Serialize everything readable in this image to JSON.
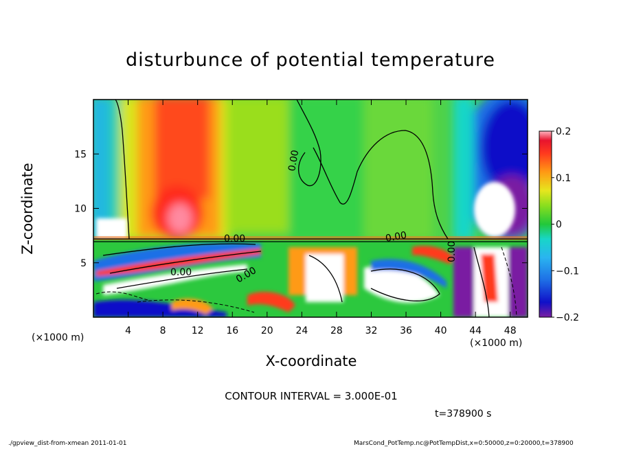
{
  "chart_data": {
    "type": "heatmap",
    "title": "disturbunce of potential temperature",
    "xlabel": "X-coordinate",
    "ylabel": "Z-coordinate",
    "x_unit_label": "(×1000 m)",
    "x_ticks": [
      4,
      8,
      12,
      16,
      20,
      24,
      28,
      32,
      36,
      40,
      44,
      48
    ],
    "y_ticks": [
      5,
      10,
      15
    ],
    "xlim": [
      0,
      50
    ],
    "ylim": [
      0,
      20
    ],
    "colorbar": {
      "ticks": [
        "0.2",
        "0.1",
        "0",
        "−0.1",
        "−0.2"
      ],
      "tick_values": [
        0.2,
        0.1,
        0,
        -0.1,
        -0.2
      ],
      "range": [
        -0.2,
        0.2
      ]
    },
    "contour_labels": [
      "0.00",
      "0.00",
      "0.00",
      "0.00",
      "0.00",
      "0.00"
    ],
    "contour_interval_text": "CONTOUR INTERVAL = 3.000E-01",
    "time_text": "t=378900 s",
    "footer_left": "./gpview_dist-from-xmean  2011-01-01",
    "footer_right": "MarsCond_PotTemp.nc@PotTempDist,x=0:50000,z=0:20000,t=378900"
  }
}
